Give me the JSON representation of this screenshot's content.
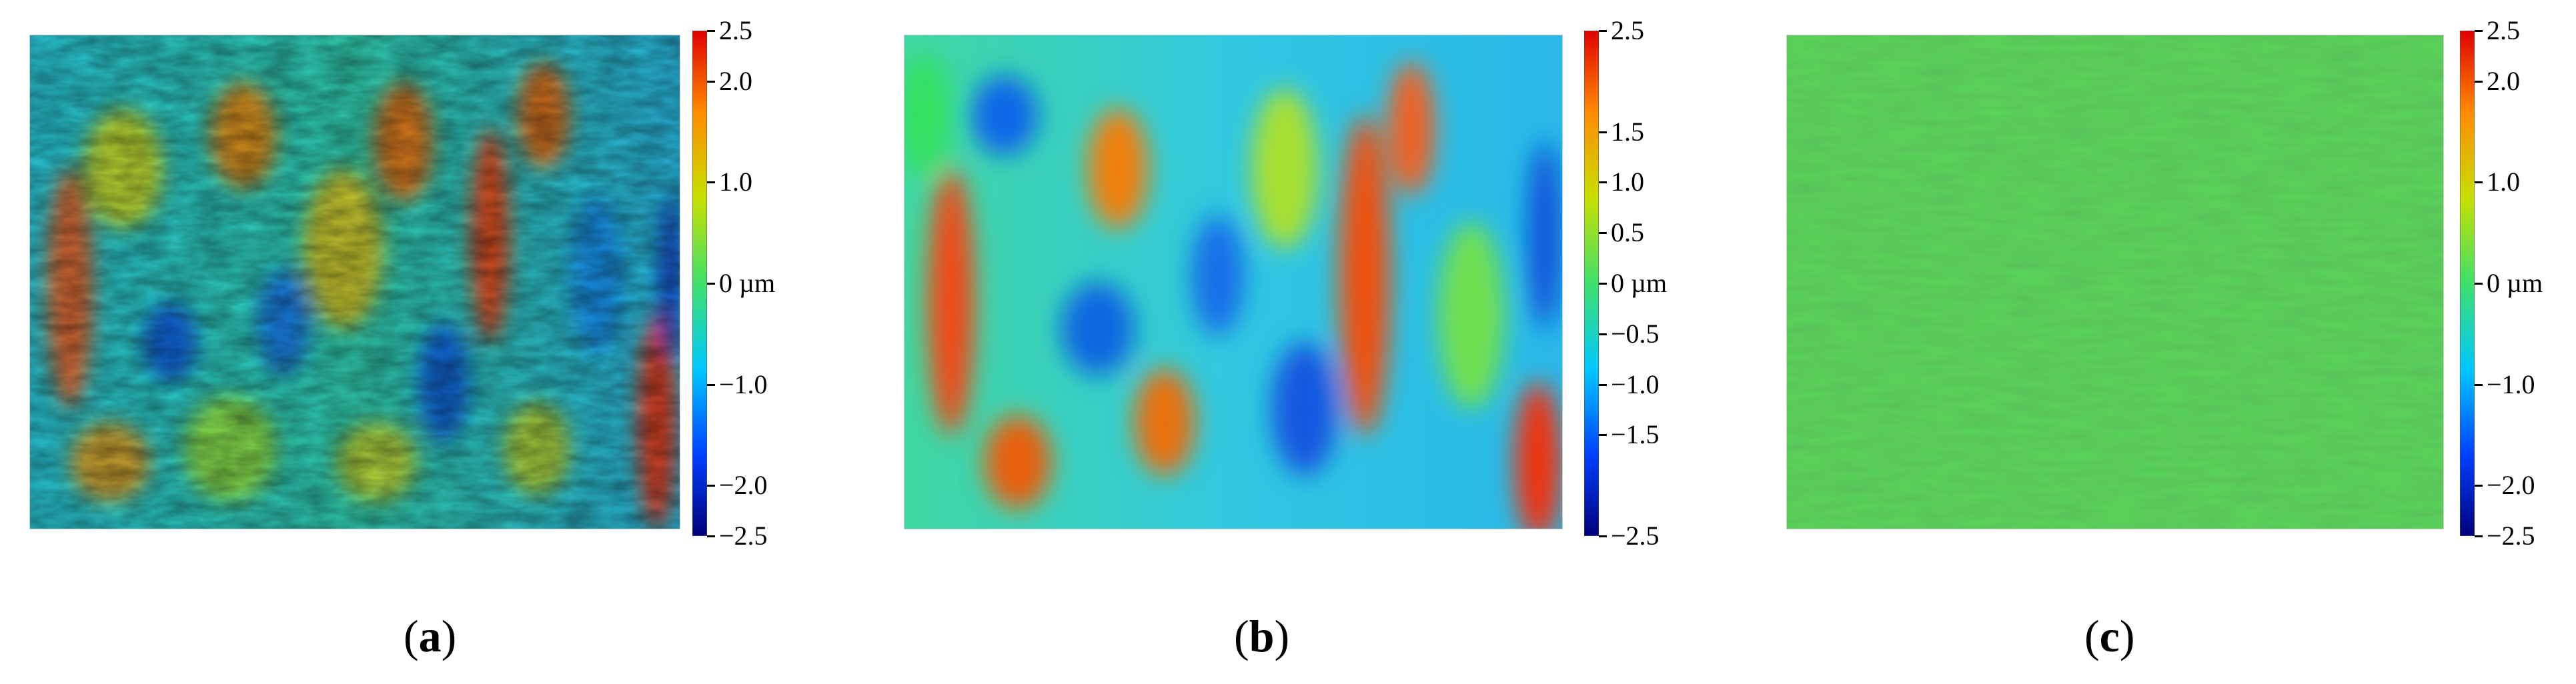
{
  "panels": [
    {
      "label": "a",
      "colorbar_ticks": [
        "2.5",
        "2.0",
        "1.0",
        "0 µm",
        "−1.0",
        "−2.0",
        "−2.5"
      ],
      "tick_values": [
        2.5,
        2.0,
        1.0,
        0,
        -1.0,
        -2.0,
        -2.5
      ],
      "style": "rough"
    },
    {
      "label": "b",
      "colorbar_ticks": [
        "2.5",
        "1.5",
        "1.0",
        "0.5",
        "0 µm",
        "−0.5",
        "−1.0",
        "−1.5",
        "−2.5"
      ],
      "tick_values": [
        2.5,
        1.5,
        1.0,
        0.5,
        0,
        -0.5,
        -1.0,
        -1.5,
        -2.5
      ],
      "style": "smooth"
    },
    {
      "label": "c",
      "colorbar_ticks": [
        "2.5",
        "2.0",
        "1.0",
        "0 µm",
        "−1.0",
        "−2.0",
        "−2.5"
      ],
      "tick_values": [
        2.5,
        2.0,
        1.0,
        0,
        -1.0,
        -2.0,
        -2.5
      ],
      "style": "flat"
    }
  ],
  "colormap": [
    "#00007a",
    "#0040ff",
    "#00c8ff",
    "#3ee06a",
    "#c8e000",
    "#ff8a00",
    "#e00000"
  ],
  "value_range": [
    -2.5,
    2.5
  ]
}
